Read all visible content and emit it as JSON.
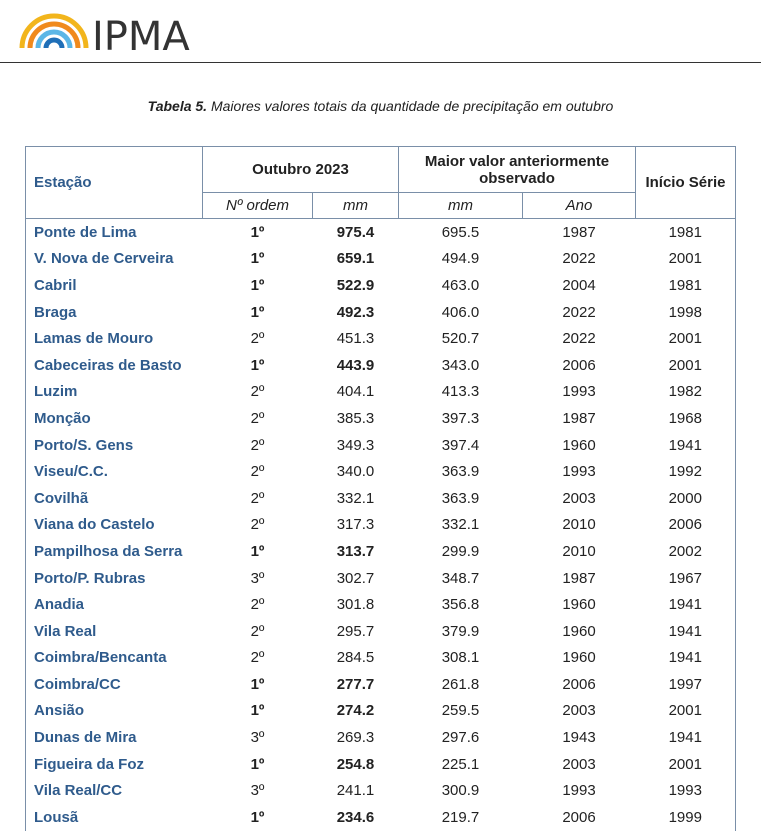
{
  "header": {
    "logo": "IPMA"
  },
  "caption": {
    "label": "Tabela 5.",
    "text": "Maiores valores totais da quantidade de precipitação em outubro"
  },
  "table": {
    "headers": {
      "station": "Estação",
      "group_current": "Outubro 2023",
      "group_previous": "Maior valor anteriormente observado",
      "series_start": "Início Série",
      "sub": [
        "Nº ordem",
        "mm",
        "mm",
        "Ano"
      ]
    },
    "rows": [
      [
        "Ponte de Lima",
        "1º",
        "975.4",
        "695.5",
        "1987",
        "1981"
      ],
      [
        "V. Nova de Cerveira",
        "1º",
        "659.1",
        "494.9",
        "2022",
        "2001"
      ],
      [
        "Cabril",
        "1º",
        "522.9",
        "463.0",
        "2004",
        "1981"
      ],
      [
        "Braga",
        "1º",
        "492.3",
        "406.0",
        "2022",
        "1998"
      ],
      [
        "Lamas de Mouro",
        "2º",
        "451.3",
        "520.7",
        "2022",
        "2001"
      ],
      [
        "Cabeceiras de Basto",
        "1º",
        "443.9",
        "343.0",
        "2006",
        "2001"
      ],
      [
        "Luzim",
        "2º",
        "404.1",
        "413.3",
        "1993",
        "1982"
      ],
      [
        "Monção",
        "2º",
        "385.3",
        "397.3",
        "1987",
        "1968"
      ],
      [
        "Porto/S. Gens",
        "2º",
        "349.3",
        "397.4",
        "1960",
        "1941"
      ],
      [
        "Viseu/C.C.",
        "2º",
        "340.0",
        "363.9",
        "1993",
        "1992"
      ],
      [
        "Covilhã",
        "2º",
        "332.1",
        "363.9",
        "2003",
        "2000"
      ],
      [
        "Viana do Castelo",
        "2º",
        "317.3",
        "332.1",
        "2010",
        "2006"
      ],
      [
        "Pampilhosa da Serra",
        "1º",
        "313.7",
        "299.9",
        "2010",
        "2002"
      ],
      [
        "Porto/P. Rubras",
        "3º",
        "302.7",
        "348.7",
        "1987",
        "1967"
      ],
      [
        "Anadia",
        "2º",
        "301.8",
        "356.8",
        "1960",
        "1941"
      ],
      [
        "Vila Real",
        "2º",
        "295.7",
        "379.9",
        "1960",
        "1941"
      ],
      [
        "Coimbra/Bencanta",
        "2º",
        "284.5",
        "308.1",
        "1960",
        "1941"
      ],
      [
        "Coimbra/CC",
        "1º",
        "277.7",
        "261.8",
        "2006",
        "1997"
      ],
      [
        "Ansião",
        "1º",
        "274.2",
        "259.5",
        "2003",
        "2001"
      ],
      [
        "Dunas de Mira",
        "3º",
        "269.3",
        "297.6",
        "1943",
        "1941"
      ],
      [
        "Figueira da Foz",
        "1º",
        "254.8",
        "225.1",
        "2003",
        "2001"
      ],
      [
        "Vila Real/CC",
        "3º",
        "241.1",
        "300.9",
        "1993",
        "1993"
      ],
      [
        "Lousã",
        "1º",
        "234.6",
        "219.7",
        "2006",
        "1999"
      ]
    ]
  }
}
